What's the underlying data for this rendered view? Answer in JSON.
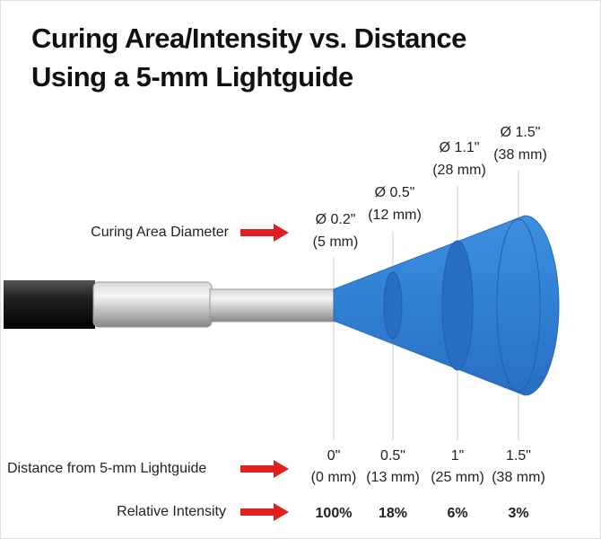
{
  "title": [
    "Curing Area/Intensity vs. Distance",
    "Using a 5-mm Lightguide"
  ],
  "labels": {
    "diameter": "Curing Area Diameter",
    "distance": "Distance from 5-mm Lightguide",
    "intensity": "Relative Intensity"
  },
  "columns": [
    {
      "diameter": "Ø 0.2\"",
      "diameter_mm": "(5 mm)",
      "distance": "0\"",
      "distance_mm": "(0 mm)",
      "intensity": "100%"
    },
    {
      "diameter": "Ø 0.5\"",
      "diameter_mm": "(12 mm)",
      "distance": "0.5\"",
      "distance_mm": "(13 mm)",
      "intensity": "18%"
    },
    {
      "diameter": "Ø 1.1\"",
      "diameter_mm": "(28 mm)",
      "distance": "1\"",
      "distance_mm": "(25 mm)",
      "intensity": "6%"
    },
    {
      "diameter": "Ø 1.5\"",
      "diameter_mm": "(38 mm)",
      "distance": "1.5\"",
      "distance_mm": "(38 mm)",
      "intensity": "3%"
    }
  ]
}
